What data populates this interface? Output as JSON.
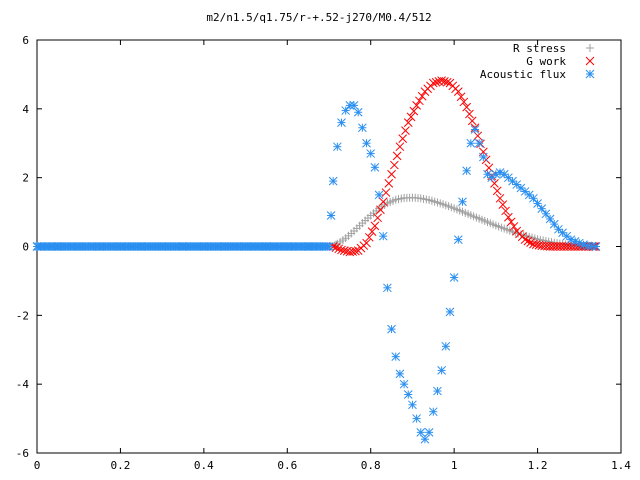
{
  "chart_data": {
    "type": "scatter",
    "title": "m2/n1.5/q1.75/r-+.52-j270/M0.4/512",
    "xlabel": "",
    "ylabel": "",
    "xlim": [
      0,
      1.4
    ],
    "ylim": [
      -6,
      6
    ],
    "x_ticks": [
      "0",
      "0.2",
      "0.4",
      "0.6",
      "0.8",
      "1",
      "1.2",
      "1.4"
    ],
    "y_ticks": [
      "-6",
      "-4",
      "-2",
      "0",
      "2",
      "4",
      "6"
    ],
    "legend_position": "top-right",
    "grid": false,
    "series": [
      {
        "name": "R stress",
        "marker": "+",
        "color": "#a0a0a0",
        "x": [
          0.71,
          0.72,
          0.74,
          0.76,
          0.78,
          0.8,
          0.82,
          0.84,
          0.86,
          0.88,
          0.9,
          0.92,
          0.94,
          0.96,
          0.98,
          1.0,
          1.02,
          1.04,
          1.06,
          1.08,
          1.1,
          1.12,
          1.14,
          1.16,
          1.18,
          1.2,
          1.22,
          1.24,
          1.26,
          1.28,
          1.3,
          1.32,
          1.34
        ],
        "y": [
          0.0,
          0.08,
          0.24,
          0.45,
          0.68,
          0.9,
          1.1,
          1.26,
          1.36,
          1.41,
          1.42,
          1.4,
          1.35,
          1.28,
          1.2,
          1.11,
          1.01,
          0.91,
          0.81,
          0.71,
          0.61,
          0.52,
          0.43,
          0.35,
          0.28,
          0.21,
          0.16,
          0.11,
          0.07,
          0.04,
          0.02,
          0.01,
          0.0
        ]
      },
      {
        "name": "G work",
        "marker": "x",
        "color": "#ff0000",
        "x": [
          0.71,
          0.73,
          0.75,
          0.77,
          0.79,
          0.81,
          0.83,
          0.85,
          0.87,
          0.89,
          0.91,
          0.93,
          0.95,
          0.97,
          0.99,
          1.01,
          1.03,
          1.05,
          1.07,
          1.09,
          1.11,
          1.13,
          1.15,
          1.17,
          1.19,
          1.21,
          1.23,
          1.25,
          1.27,
          1.29,
          1.31,
          1.33,
          1.34
        ],
        "y": [
          0.0,
          -0.1,
          -0.16,
          -0.12,
          0.1,
          0.6,
          1.3,
          2.1,
          2.9,
          3.6,
          4.1,
          4.5,
          4.75,
          4.82,
          4.75,
          4.5,
          4.05,
          3.45,
          2.75,
          2.05,
          1.4,
          0.85,
          0.45,
          0.2,
          0.07,
          0.02,
          0.0,
          0.0,
          0.0,
          0.0,
          0.0,
          0.0,
          0.0
        ]
      },
      {
        "name": "Acoustic flux",
        "marker": "*",
        "color": "#2a8ff0",
        "x": [
          0.0,
          0.05,
          0.1,
          0.15,
          0.2,
          0.25,
          0.3,
          0.35,
          0.4,
          0.45,
          0.5,
          0.55,
          0.6,
          0.65,
          0.7,
          0.705,
          0.71,
          0.72,
          0.73,
          0.74,
          0.75,
          0.76,
          0.77,
          0.78,
          0.79,
          0.8,
          0.81,
          0.82,
          0.83,
          0.84,
          0.85,
          0.86,
          0.87,
          0.88,
          0.89,
          0.9,
          0.91,
          0.92,
          0.93,
          0.94,
          0.95,
          0.96,
          0.97,
          0.98,
          0.99,
          1.0,
          1.01,
          1.02,
          1.03,
          1.04,
          1.05,
          1.06,
          1.07,
          1.08,
          1.09,
          1.1,
          1.11,
          1.12,
          1.13,
          1.14,
          1.15,
          1.16,
          1.17,
          1.18,
          1.19,
          1.2,
          1.21,
          1.22,
          1.23,
          1.24,
          1.25,
          1.26,
          1.27,
          1.28,
          1.29,
          1.3,
          1.31,
          1.32,
          1.33,
          1.34
        ],
        "y": [
          0.0,
          0.0,
          0.0,
          0.0,
          0.0,
          0.0,
          0.0,
          0.0,
          0.0,
          0.0,
          0.0,
          0.0,
          0.0,
          0.0,
          0.0,
          0.9,
          1.9,
          2.9,
          3.6,
          3.95,
          4.1,
          4.1,
          3.9,
          3.45,
          3.0,
          2.7,
          2.3,
          1.5,
          0.3,
          -1.2,
          -2.4,
          -3.2,
          -3.7,
          -4.0,
          -4.3,
          -4.6,
          -5.0,
          -5.4,
          -5.6,
          -5.4,
          -4.8,
          -4.2,
          -3.6,
          -2.9,
          -1.9,
          -0.9,
          0.2,
          1.3,
          2.2,
          3.0,
          3.4,
          3.0,
          2.6,
          2.1,
          2.0,
          2.1,
          2.15,
          2.1,
          2.0,
          1.9,
          1.8,
          1.7,
          1.6,
          1.5,
          1.4,
          1.25,
          1.1,
          0.95,
          0.8,
          0.65,
          0.5,
          0.4,
          0.3,
          0.2,
          0.15,
          0.1,
          0.05,
          0.02,
          0.01,
          0.0
        ]
      }
    ]
  }
}
